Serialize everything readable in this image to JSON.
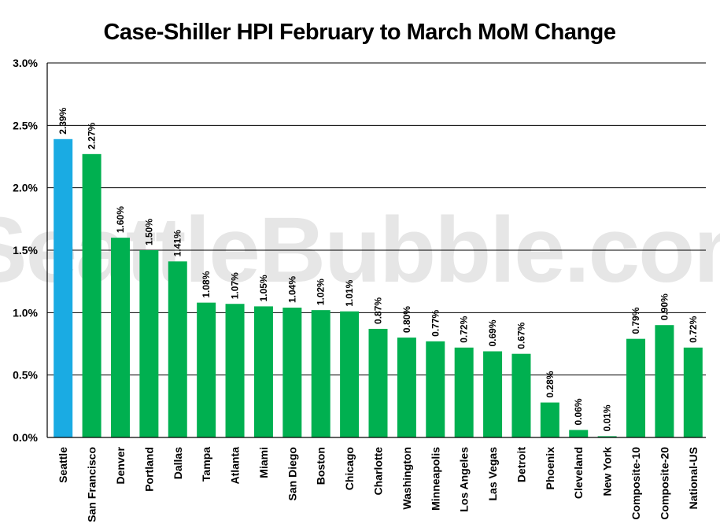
{
  "chart_data": {
    "type": "bar",
    "title": "Case-Shiller HPI February to March MoM Change",
    "watermark": "SeattleBubble.com",
    "categories": [
      "Seattle",
      "San Francisco",
      "Denver",
      "Portland",
      "Dallas",
      "Tampa",
      "Atlanta",
      "Miami",
      "San Diego",
      "Boston",
      "Chicago",
      "Charlotte",
      "Washington",
      "Minneapolis",
      "Los Angeles",
      "Las Vegas",
      "Detroit",
      "Phoenix",
      "Cleveland",
      "New York",
      "Composite-10",
      "Composite-20",
      "National-US"
    ],
    "values": [
      2.39,
      2.27,
      1.6,
      1.5,
      1.41,
      1.08,
      1.07,
      1.05,
      1.04,
      1.02,
      1.01,
      0.87,
      0.8,
      0.77,
      0.72,
      0.69,
      0.67,
      0.28,
      0.06,
      0.01,
      0.79,
      0.9,
      0.72
    ],
    "value_labels": [
      "2.39%",
      "2.27%",
      "1.60%",
      "1.50%",
      "1.41%",
      "1.08%",
      "1.07%",
      "1.05%",
      "1.04%",
      "1.02%",
      "1.01%",
      "0.87%",
      "0.80%",
      "0.77%",
      "0.72%",
      "0.69%",
      "0.67%",
      "0.28%",
      "0.06%",
      "0.01%",
      "0.79%",
      "0.90%",
      "0.72%"
    ],
    "y_ticks": [
      0,
      0.5,
      1.0,
      1.5,
      2.0,
      2.5,
      3.0
    ],
    "y_tick_labels": [
      "0.0%",
      "0.5%",
      "1.0%",
      "1.5%",
      "2.0%",
      "2.5%",
      "3.0%"
    ],
    "ylim": [
      0,
      3.0
    ],
    "grid": true,
    "colors": {
      "highlight": "#1aabe3",
      "default": "#00b050"
    },
    "highlight_category": "Seattle"
  }
}
